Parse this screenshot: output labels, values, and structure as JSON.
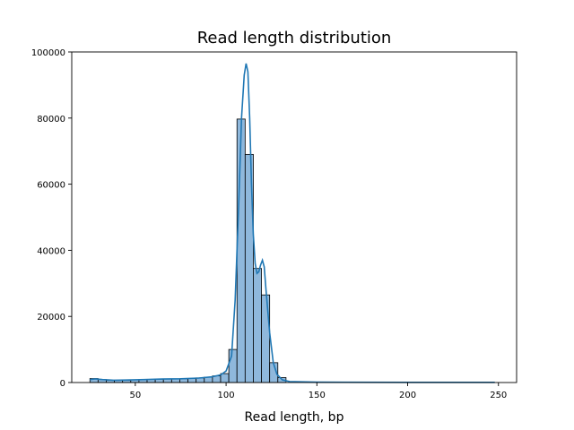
{
  "chart_data": {
    "type": "bar",
    "title": "Read length distribution",
    "xlabel": "Read length, bp",
    "ylabel": "",
    "xlim": [
      15,
      260
    ],
    "ylim": [
      0,
      100000
    ],
    "xticks": [
      50,
      100,
      150,
      200,
      250
    ],
    "yticks": [
      0,
      20000,
      40000,
      60000,
      80000,
      100000
    ],
    "bin_width": 4.5,
    "bins": [
      {
        "x0": 25.0,
        "value": 1200
      },
      {
        "x0": 29.5,
        "value": 900
      },
      {
        "x0": 34.0,
        "value": 700
      },
      {
        "x0": 38.5,
        "value": 650
      },
      {
        "x0": 43.0,
        "value": 700
      },
      {
        "x0": 47.5,
        "value": 800
      },
      {
        "x0": 52.0,
        "value": 900
      },
      {
        "x0": 56.5,
        "value": 950
      },
      {
        "x0": 61.0,
        "value": 1000
      },
      {
        "x0": 65.5,
        "value": 1050
      },
      {
        "x0": 70.0,
        "value": 1100
      },
      {
        "x0": 74.5,
        "value": 1150
      },
      {
        "x0": 79.0,
        "value": 1250
      },
      {
        "x0": 83.5,
        "value": 1400
      },
      {
        "x0": 88.0,
        "value": 1600
      },
      {
        "x0": 92.5,
        "value": 2000
      },
      {
        "x0": 97.0,
        "value": 2700
      },
      {
        "x0": 101.5,
        "value": 10000
      },
      {
        "x0": 106.0,
        "value": 79700
      },
      {
        "x0": 110.5,
        "value": 69000
      },
      {
        "x0": 115.0,
        "value": 34500
      },
      {
        "x0": 119.5,
        "value": 26500
      },
      {
        "x0": 124.0,
        "value": 6000
      },
      {
        "x0": 128.5,
        "value": 1500
      }
    ],
    "kde": [
      [
        25,
        900
      ],
      [
        28,
        1100
      ],
      [
        32,
        900
      ],
      [
        38,
        700
      ],
      [
        45,
        750
      ],
      [
        55,
        900
      ],
      [
        65,
        1050
      ],
      [
        75,
        1150
      ],
      [
        85,
        1350
      ],
      [
        92,
        1700
      ],
      [
        97,
        2300
      ],
      [
        100,
        3500
      ],
      [
        103,
        8000
      ],
      [
        105,
        25000
      ],
      [
        107,
        55000
      ],
      [
        108.5,
        80000
      ],
      [
        110,
        93000
      ],
      [
        111,
        96500
      ],
      [
        112,
        94000
      ],
      [
        113,
        80000
      ],
      [
        114,
        60000
      ],
      [
        115,
        45000
      ],
      [
        116,
        36000
      ],
      [
        117,
        33000
      ],
      [
        118,
        33500
      ],
      [
        119,
        35500
      ],
      [
        120,
        37000
      ],
      [
        121,
        35000
      ],
      [
        122,
        28000
      ],
      [
        124,
        15000
      ],
      [
        126,
        6000
      ],
      [
        128,
        2500
      ],
      [
        131,
        800
      ],
      [
        135,
        300
      ],
      [
        150,
        100
      ],
      [
        200,
        50
      ],
      [
        248,
        50
      ]
    ],
    "colors": {
      "bar_fill": "#8fb8dc",
      "bar_edge": "#000000",
      "kde_line": "#1f77b4"
    },
    "grid": false,
    "legend": "none"
  }
}
